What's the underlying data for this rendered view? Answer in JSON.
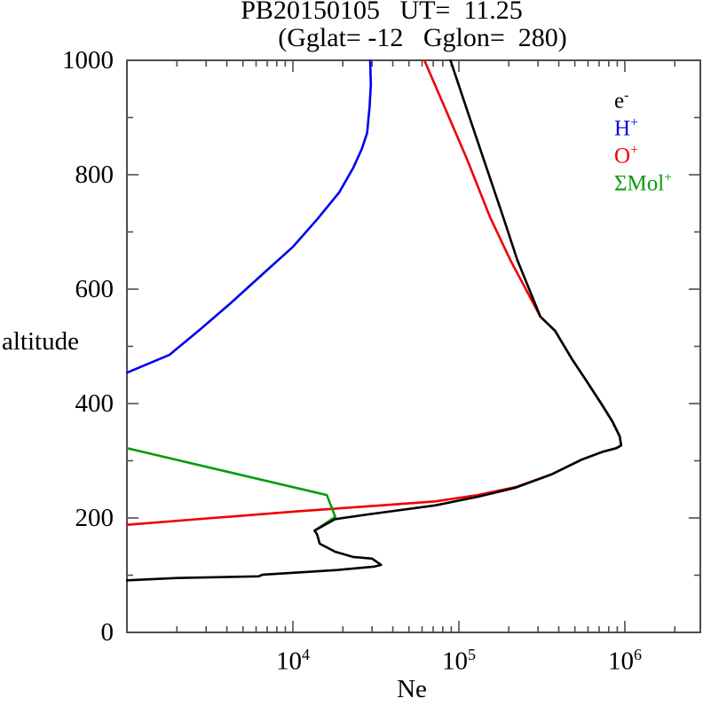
{
  "header": {
    "title_line1": "PB20150105   UT=  11.25",
    "title_line2": "(Gglat= -12   Gglon=  280)"
  },
  "chart_data": {
    "type": "line",
    "title": "PB20150105 UT= 11.25 (Gglat= -12 Gglon= 280)",
    "xlabel": "Ne",
    "ylabel": "altitude",
    "x_scale": "log",
    "xlim": [
      1000,
      2850000
    ],
    "ylim": [
      0,
      1000
    ],
    "grid": false,
    "legend_position": "upper right inside",
    "frame_color": "#4d4d4d",
    "x_ticks": {
      "major": [
        {
          "value": 10000,
          "base": "10",
          "exp": "4"
        },
        {
          "value": 100000,
          "base": "10",
          "exp": "5"
        },
        {
          "value": 1000000,
          "base": "10",
          "exp": "6"
        }
      ],
      "minor": [
        2000,
        3000,
        4000,
        5000,
        6000,
        7000,
        8000,
        9000,
        20000,
        30000,
        40000,
        50000,
        60000,
        70000,
        80000,
        90000,
        200000,
        300000,
        400000,
        500000,
        600000,
        700000,
        800000,
        900000,
        2000000
      ]
    },
    "y_ticks": {
      "major": [
        {
          "value": 0,
          "label": "0"
        },
        {
          "value": 200,
          "label": "200"
        },
        {
          "value": 400,
          "label": "400"
        },
        {
          "value": 600,
          "label": "600"
        },
        {
          "value": 800,
          "label": "800"
        },
        {
          "value": 1000,
          "label": "1000"
        }
      ],
      "minor": [
        100,
        300,
        500,
        700,
        900
      ]
    },
    "draw_order": [
      2,
      3,
      1,
      0
    ],
    "series": [
      {
        "name": "electron",
        "label": "e",
        "sup": "-",
        "color": "#000000",
        "points": [
          [
            1000,
            91
          ],
          [
            2000,
            95
          ],
          [
            6200,
            98
          ],
          [
            6600,
            101
          ],
          [
            18500,
            109
          ],
          [
            31000,
            115
          ],
          [
            34000,
            118
          ],
          [
            30000,
            129
          ],
          [
            23000,
            132
          ],
          [
            18000,
            141
          ],
          [
            14500,
            155
          ],
          [
            14000,
            171
          ],
          [
            13500,
            178
          ],
          [
            18000,
            198
          ],
          [
            28000,
            206
          ],
          [
            72000,
            222
          ],
          [
            130000,
            237
          ],
          [
            220000,
            253
          ],
          [
            360000,
            276
          ],
          [
            550000,
            302
          ],
          [
            740000,
            316
          ],
          [
            890000,
            322
          ],
          [
            950000,
            327
          ],
          [
            930000,
            343
          ],
          [
            840000,
            369
          ],
          [
            720000,
            400
          ],
          [
            580000,
            442
          ],
          [
            480000,
            478
          ],
          [
            380000,
            527
          ],
          [
            310000,
            552
          ],
          [
            225000,
            651
          ],
          [
            185000,
            726
          ],
          [
            141000,
            827
          ],
          [
            110000,
            920
          ],
          [
            89000,
            1000
          ]
        ]
      },
      {
        "name": "hydrogen-ion",
        "label": "H",
        "sup": "+",
        "color": "#0000ee",
        "points": [
          [
            1000,
            454
          ],
          [
            1800,
            485
          ],
          [
            2750,
            529
          ],
          [
            4200,
            575
          ],
          [
            6500,
            625
          ],
          [
            10000,
            674
          ],
          [
            14000,
            722
          ],
          [
            19000,
            769
          ],
          [
            23000,
            811
          ],
          [
            26000,
            845
          ],
          [
            28000,
            873
          ],
          [
            29000,
            919
          ],
          [
            29500,
            958
          ],
          [
            29200,
            1000
          ]
        ]
      },
      {
        "name": "oxygen-ion",
        "label": "O",
        "sup": "+",
        "color": "#ee0000",
        "points": [
          [
            1000,
            188
          ],
          [
            3300,
            200
          ],
          [
            11000,
            212
          ],
          [
            34000,
            222
          ],
          [
            72000,
            229
          ],
          [
            130000,
            240
          ],
          [
            220000,
            254
          ],
          [
            360000,
            276
          ],
          [
            550000,
            302
          ],
          [
            740000,
            316
          ],
          [
            890000,
            322
          ],
          [
            950000,
            327
          ],
          [
            930000,
            343
          ],
          [
            840000,
            369
          ],
          [
            720000,
            400
          ],
          [
            580000,
            442
          ],
          [
            480000,
            478
          ],
          [
            380000,
            527
          ],
          [
            310000,
            552
          ],
          [
            204000,
            651
          ],
          [
            154000,
            726
          ],
          [
            112000,
            827
          ],
          [
            81500,
            920
          ],
          [
            62000,
            1000
          ]
        ]
      },
      {
        "name": "molecular-ions",
        "label": "ΣMol",
        "sup": "+",
        "color": "#0a9a0f",
        "points": [
          [
            1000,
            322
          ],
          [
            16000,
            240
          ],
          [
            18000,
            202
          ],
          [
            13500,
            178
          ]
        ]
      }
    ]
  }
}
